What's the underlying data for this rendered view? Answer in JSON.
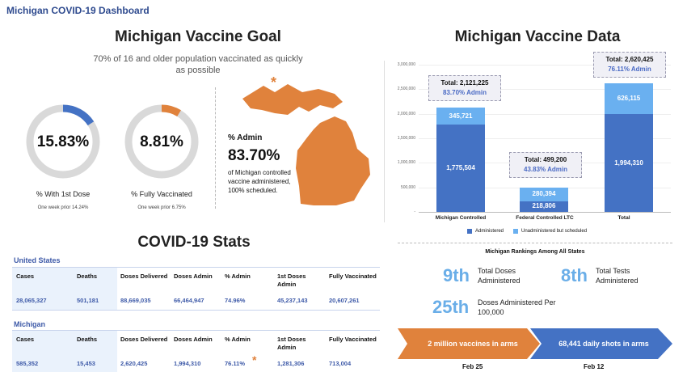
{
  "dashboard_title": "Michigan COVID-19 Dashboard",
  "goal": {
    "title": "Michigan Vaccine Goal",
    "subtitle": "70% of 16 and older population vaccinated as quickly as possible",
    "ring1": {
      "value": "15.83%",
      "fraction": 0.1583,
      "label": "% With 1st Dose",
      "prior": "One week prior 14.24%"
    },
    "ring2": {
      "value": "8.81%",
      "fraction": 0.0881,
      "label": "% Fully Vaccinated",
      "prior": "One week prior 6.75%"
    },
    "admin": {
      "label": "% Admin",
      "value": "83.70%",
      "note": "of Michigan controlled vaccine administered, 100% scheduled.",
      "asterisk": "*"
    }
  },
  "colors": {
    "blue": "#4472c4",
    "light_blue": "#6ab0f0",
    "orange": "#e0823c",
    "ring_gray": "#d9d9d9"
  },
  "vaccine_data": {
    "title": "Michigan Vaccine Data",
    "legend": [
      "Administered",
      "Unadministered but scheduled"
    ],
    "callouts": [
      {
        "total": "Total: 2,121,225",
        "pct": "83.70% Admin"
      },
      {
        "total": "Total: 499,200",
        "pct": "43.83% Admin"
      },
      {
        "total": "Total: 2,620,425",
        "pct": "76.11% Admin"
      }
    ]
  },
  "chart_data": {
    "type": "bar",
    "categories": [
      "Michigan Controlled",
      "Federal Controlled LTC",
      "Total"
    ],
    "series": [
      {
        "name": "Administered",
        "values": [
          1775504,
          218806,
          1994310
        ],
        "labels": [
          "1,775,504",
          "218,806",
          "1,994,310"
        ]
      },
      {
        "name": "Unadministered but scheduled",
        "values": [
          345721,
          280394,
          626115
        ],
        "labels": [
          "345,721",
          "280,394",
          "626,115"
        ]
      }
    ],
    "yticks": [
      "3,000,000",
      "2,500,000",
      "2,000,000",
      "1,500,000",
      "1,000,000",
      "500,000",
      "-"
    ],
    "ylim": [
      0,
      3000000
    ],
    "stacked": true,
    "legend_position": "bottom"
  },
  "stats": {
    "title": "COVID-19 Stats",
    "us": {
      "label": "United States",
      "headers": [
        "Cases",
        "Deaths",
        "Doses Delivered",
        "Doses Admin",
        "% Admin",
        "1st Doses Admin",
        "Fully Vaccinated"
      ],
      "values": [
        "28,065,327",
        "501,181",
        "88,669,035",
        "66,464,947",
        "74.96%",
        "45,237,143",
        "20,607,261"
      ]
    },
    "mi": {
      "label": "Michigan",
      "headers": [
        "Cases",
        "Deaths",
        "Doses Delivered",
        "Doses Admin",
        "% Admin",
        "1st Doses Admin",
        "Fully Vaccinated"
      ],
      "values": [
        "585,352",
        "15,453",
        "2,620,425",
        "1,994,310",
        "76.11%",
        "1,281,306",
        "713,004"
      ],
      "asterisk": "*"
    }
  },
  "rankings": {
    "title": "Michigan Rankings Among All States",
    "items": [
      {
        "rank": "9th",
        "text": "Total Doses Administered"
      },
      {
        "rank": "8th",
        "text": "Total Tests Administered"
      },
      {
        "rank": "25th",
        "text": "Doses Administered Per 100,000"
      }
    ]
  },
  "timeline": {
    "left": {
      "text": "2 million vaccines in arms",
      "date": "Feb 25"
    },
    "right": {
      "text": "68,441 daily shots in arms",
      "date": "Feb 12"
    }
  }
}
